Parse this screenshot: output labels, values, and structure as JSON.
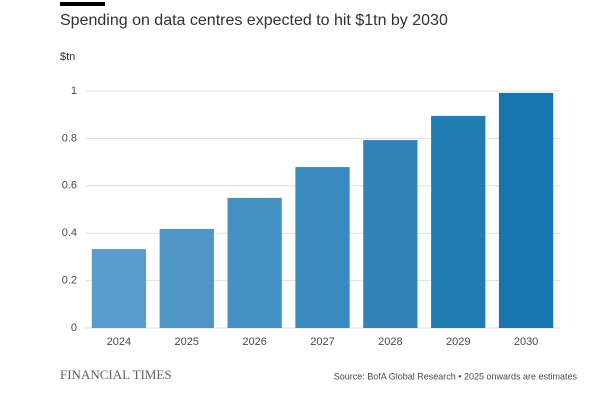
{
  "chart_data": {
    "type": "bar",
    "title": "Spending on data centres expected to hit $1tn by 2030",
    "y_label": "$tn",
    "categories": [
      "2024",
      "2025",
      "2026",
      "2027",
      "2028",
      "2029",
      "2030"
    ],
    "values": [
      0.333,
      0.418,
      0.549,
      0.679,
      0.793,
      0.895,
      0.992
    ],
    "colors": [
      "#5a9ccb",
      "#4f95c6",
      "#4390c3",
      "#3a8abf",
      "#2f83b9",
      "#237db5",
      "#1775b0"
    ],
    "ylim": [
      0,
      1
    ],
    "yticks": [
      0,
      0.2,
      0.4,
      0.6,
      0.8,
      1
    ],
    "grid": true,
    "source": "Source: BofA Global Research • 2025 onwards are estimates",
    "publisher": "FINANCIAL TIMES"
  }
}
